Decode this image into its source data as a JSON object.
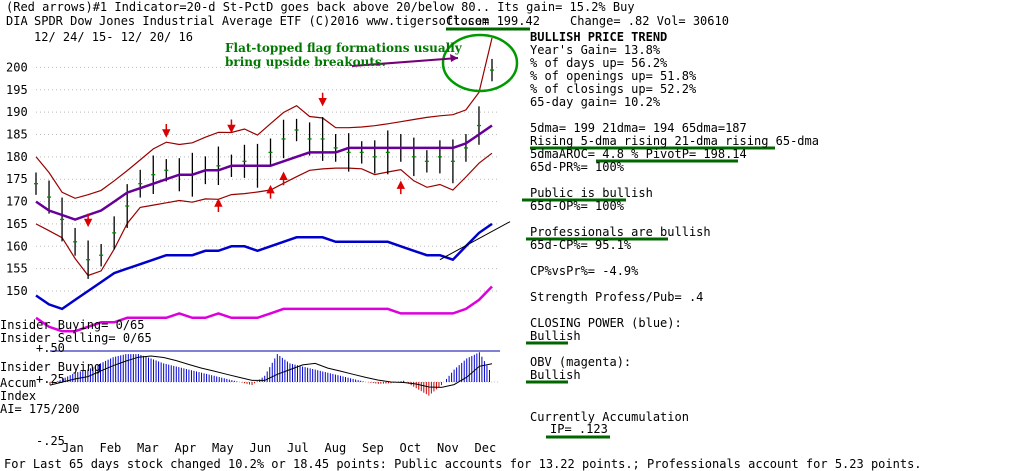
{
  "header": {
    "line1": "(Red arrows)#1 Indicator=20-d St-PctD goes back above 20/below 80.. Its gain= 15.2% Buy",
    "ticker": "DIA",
    "name": "SPDR Dow Jones Industrial Average ETF  (C)2016 www.tigersoft.com",
    "date_range": "12/ 24/ 15- 12/ 20/ 16",
    "close": "Close=  199.42",
    "change": "Change= .82 Vol= 30610"
  },
  "annotation": {
    "line1": "Flat-topped flag formations usually",
    "line2": "bring upside breakouts."
  },
  "stats": [
    {
      "text": "BULLISH PRICE TREND",
      "bold": true
    },
    {
      "text": "   Year's Gain= 13.8%"
    },
    {
      "text": "   % of days up= 56.2%"
    },
    {
      "text": "   % of openings up= 51.8%"
    },
    {
      "text": "   % of closings up= 52.2%"
    },
    {
      "text": "   65-day gain= 10.2%"
    },
    {
      "text": ""
    },
    {
      "text": "5dma= 199 21dma= 194 65dma=187"
    },
    {
      "text": "Rising 5-dma rising 21-dma rising 65-dma"
    },
    {
      "text": "5dmaAROC= 4.8 %  PivotP= 198.14"
    },
    {
      "text": "   65d-PR%= 100%"
    },
    {
      "text": ""
    },
    {
      "text": "Public is bullish"
    },
    {
      "text": "   65d-OP%= 100%"
    },
    {
      "text": ""
    },
    {
      "text": "Professionals are bullish"
    },
    {
      "text": "   65d-CP%= 95.1%"
    },
    {
      "text": ""
    },
    {
      "text": "CP%vsPr%= -4.9%"
    },
    {
      "text": ""
    },
    {
      "text": "Strength Profess/Pub= .4"
    },
    {
      "text": ""
    },
    {
      "text": "CLOSING POWER (blue):"
    },
    {
      "text": "Bullish"
    },
    {
      "text": ""
    },
    {
      "text": "OBV (magenta):"
    },
    {
      "text": "Bullish"
    }
  ],
  "accumulation": {
    "label": "Currently Accumulation",
    "value": "IP=  .123"
  },
  "insider": {
    "buying": "Insider Buying= 0/65",
    "selling": "Insider Selling= 0/65"
  },
  "lower_panel": {
    "title1": "Insider Buying",
    "title2": "Accum",
    "title3": "Index",
    "ai": "AI= 175/200",
    "ticks": [
      "+.50",
      "+.25",
      "-.25"
    ]
  },
  "footer": "For Last 65 days stock changed  10.2% or  18.45 points:  Public accounts for  13.22 points.;  Professionals account for  5.23 points.",
  "colors": {
    "closing_power": "#0000cc",
    "obv": "#dd00dd",
    "bollinger": "#990000",
    "ma65": "#660099",
    "annotation": "#007700",
    "highlight": "#006600",
    "candles": "#008800",
    "arrows": "#dd0000",
    "accum_pos": "#0000cc",
    "accum_neg": "#cc0000"
  },
  "chart_data": {
    "type": "line",
    "title": "SPDR Dow Jones Industrial Average ETF",
    "price_axis": {
      "ylim": [
        150,
        203
      ],
      "ticks": [
        150,
        155,
        160,
        165,
        170,
        175,
        180,
        185,
        190,
        195,
        200
      ]
    },
    "months": [
      "Jan",
      "Feb",
      "Mar",
      "Apr",
      "May",
      "Jun",
      "Jul",
      "Aug",
      "Sep",
      "Oct",
      "Nov",
      "Dec"
    ],
    "series": [
      {
        "name": "price (close)",
        "values": [
          174,
          171,
          166,
          161,
          157,
          158,
          163,
          169,
          174,
          176,
          177,
          176,
          176,
          177,
          178,
          178,
          179,
          178,
          181,
          184,
          186,
          184,
          184,
          182,
          181,
          181,
          180,
          181,
          182,
          180,
          179,
          180,
          179,
          182,
          187,
          199.4
        ]
      },
      {
        "name": "65-dma",
        "values": [
          170,
          168,
          167,
          166,
          167,
          168,
          170,
          172,
          173,
          174,
          175,
          176,
          176,
          177,
          177,
          178,
          178,
          178,
          178,
          179,
          180,
          181,
          181,
          181,
          182,
          182,
          182,
          182,
          182,
          182,
          182,
          182,
          182,
          183,
          185,
          187
        ]
      },
      {
        "name": "CLOSING POWER (blue)",
        "values": [
          149,
          147,
          146,
          148,
          150,
          152,
          154,
          155,
          156,
          157,
          158,
          158,
          158,
          159,
          159,
          160,
          160,
          159,
          160,
          161,
          162,
          162,
          162,
          161,
          161,
          161,
          161,
          161,
          160,
          159,
          158,
          158,
          157,
          160,
          163,
          165
        ]
      },
      {
        "name": "OBV (magenta)",
        "values": [
          144,
          142,
          141,
          141,
          142,
          143,
          143,
          144,
          144,
          144,
          144,
          145,
          144,
          144,
          145,
          144,
          144,
          144,
          145,
          146,
          146,
          146,
          146,
          146,
          146,
          146,
          146,
          146,
          145,
          145,
          145,
          145,
          145,
          146,
          148,
          151
        ]
      }
    ],
    "accum_index": [
      -0.05,
      0.05,
      0.15,
      0.2,
      0.3,
      0.4,
      0.45,
      0.45,
      0.38,
      0.3,
      0.25,
      0.2,
      0.15,
      0.1,
      0.05,
      0.0,
      -0.05,
      0.1,
      0.45,
      0.3,
      0.25,
      0.2,
      0.15,
      0.1,
      0.05,
      0.0,
      -0.03,
      -0.02,
      0.02,
      -0.1,
      -0.22,
      -0.05,
      0.2,
      0.38,
      0.48,
      0.123
    ]
  }
}
